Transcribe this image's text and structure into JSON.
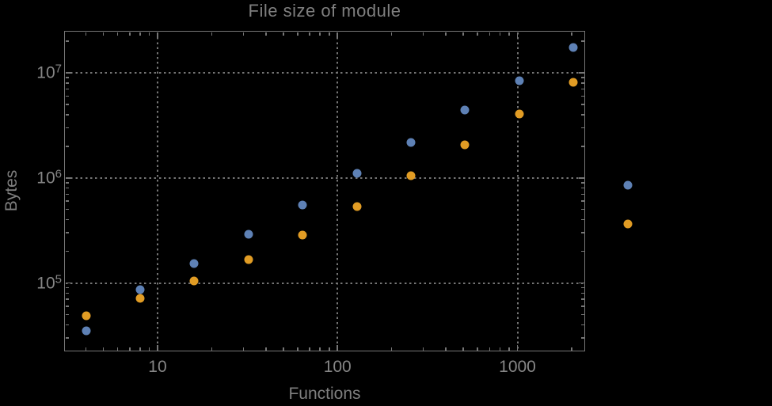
{
  "title": "File size of module",
  "colors": {
    "background": "#000000",
    "frame": "#767676",
    "grid": "#757575",
    "text": "#868686",
    "series_blue": "#5E81B5",
    "series_orange": "#E19C24"
  },
  "chart_data": {
    "type": "scatter",
    "title": "File size of module",
    "xlabel": "Functions",
    "ylabel": "Bytes",
    "x_scale": "log",
    "y_scale": "log",
    "grid": "dotted at decades, on",
    "legend": "none",
    "xlim": [
      3.026,
      2378
    ],
    "ylim": [
      22120,
      24860000
    ],
    "x_axis": {
      "label": "Functions",
      "ticks": [
        {
          "label": "10",
          "value": 10
        },
        {
          "label": "100",
          "value": 100
        },
        {
          "label": "1000",
          "value": 1000
        }
      ]
    },
    "y_axis": {
      "label": "Bytes",
      "ticks": [
        {
          "base": "10",
          "exp": "5",
          "value": 100000
        },
        {
          "base": "10",
          "exp": "6",
          "value": 1000000
        },
        {
          "base": "10",
          "exp": "7",
          "value": 10000000
        }
      ]
    },
    "x": [
      4,
      8,
      16,
      32,
      64,
      128,
      256,
      512,
      1024,
      2048,
      4096
    ],
    "series": [
      {
        "name": "blue",
        "color": "#5E81B5",
        "values": [
          35000,
          87000,
          152000,
          290000,
          550000,
          1110000,
          2190000,
          4390000,
          8480000,
          17300000,
          845000
        ]
      },
      {
        "name": "orange",
        "color": "#E19C24",
        "values": [
          49000,
          71000,
          104000,
          168000,
          288000,
          529000,
          1040000,
          2050000,
          4090000,
          8190000,
          362000
        ]
      }
    ]
  }
}
